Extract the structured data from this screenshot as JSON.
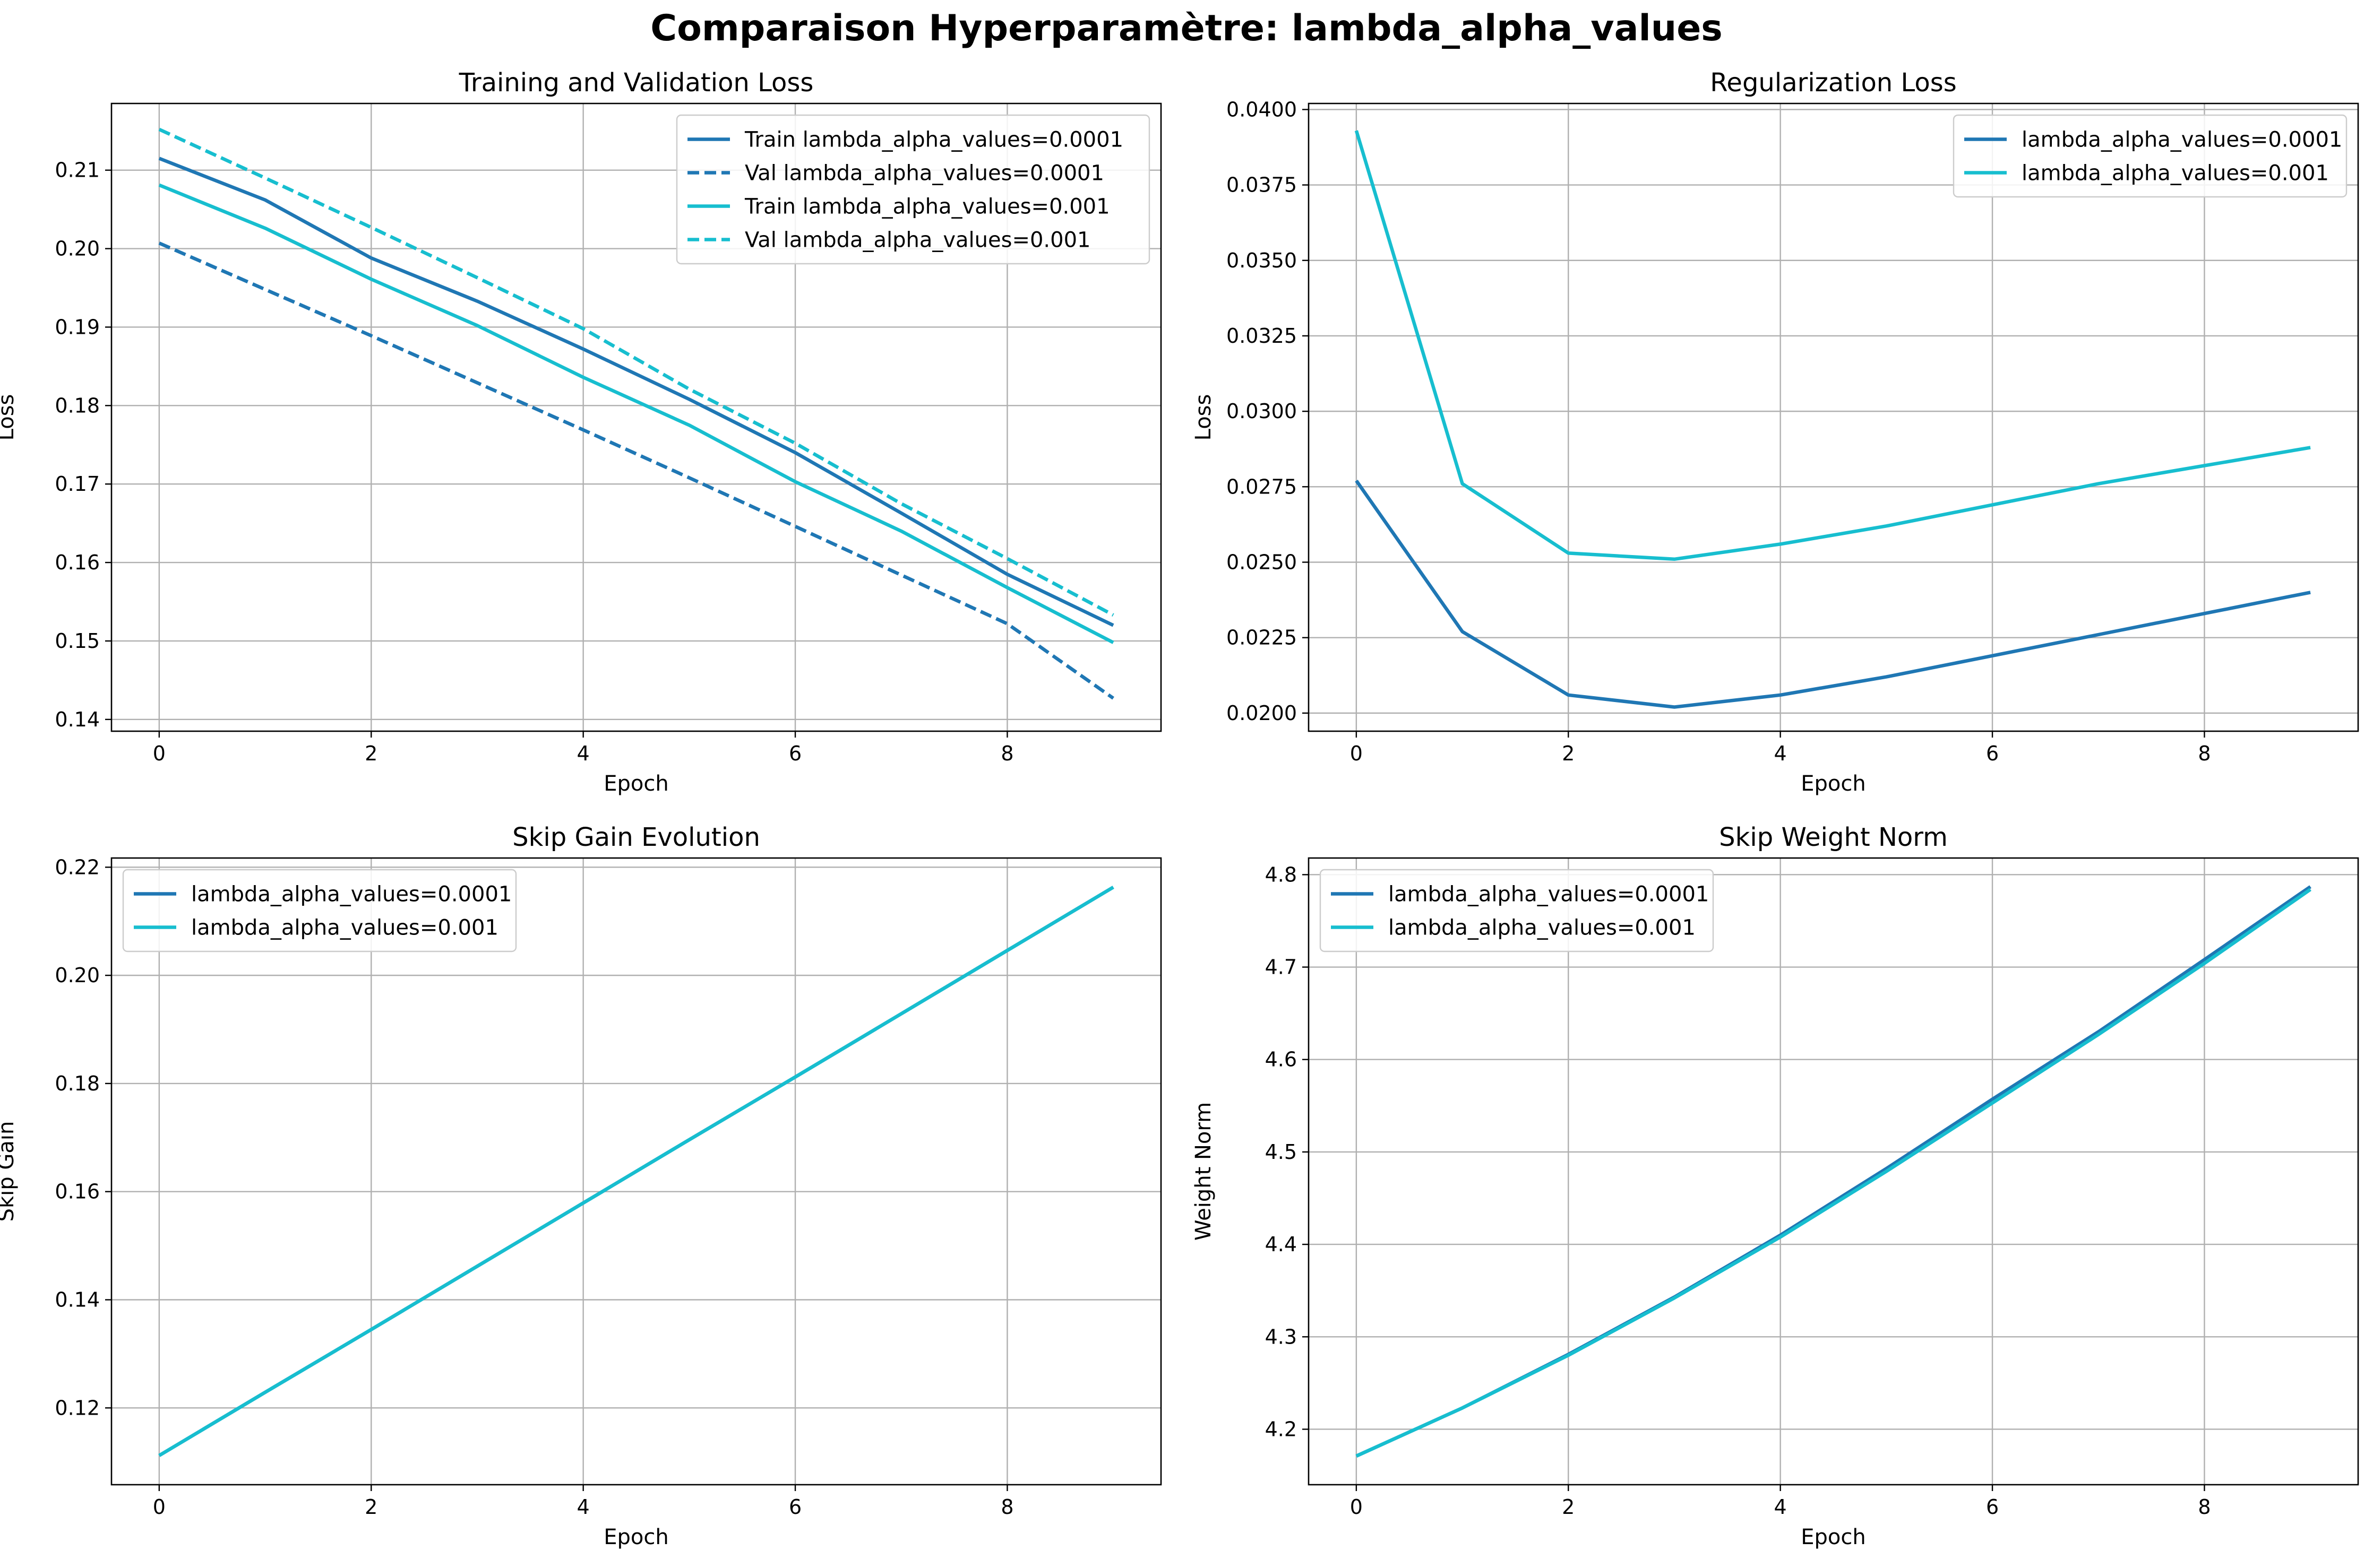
{
  "figure_title": "Comparaison Hyperparamètre: lambda_alpha_values",
  "colors": {
    "series_a": "#1f77b4",
    "series_b": "#17becf",
    "grid": "#b0b0b0",
    "frame": "#000000"
  },
  "chart_data": [
    {
      "type": "line",
      "title": "Training and Validation Loss",
      "xlabel": "Epoch",
      "ylabel": "Loss",
      "xlim": [
        -0.45,
        9.45
      ],
      "ylim": [
        0.1385,
        0.2185
      ],
      "xticks": [
        0,
        2,
        4,
        6,
        8
      ],
      "yticks": [
        0.14,
        0.15,
        0.16,
        0.17,
        0.18,
        0.19,
        0.2,
        0.21
      ],
      "ytick_labels": [
        "0.14",
        "0.15",
        "0.16",
        "0.17",
        "0.18",
        "0.19",
        "0.20",
        "0.21"
      ],
      "grid": true,
      "legend_position": "upper right",
      "x": [
        0,
        1,
        2,
        3,
        4,
        5,
        6,
        7,
        8,
        9
      ],
      "series": [
        {
          "name": "Train lambda_alpha_values=0.0001",
          "color": "#1f77b4",
          "dash": "solid",
          "values": [
            0.2115,
            0.2062,
            0.1988,
            0.1933,
            0.1872,
            0.1808,
            0.174,
            0.1663,
            0.1585,
            0.152
          ]
        },
        {
          "name": "Val lambda_alpha_values=0.0001",
          "color": "#1f77b4",
          "dash": "dashed",
          "values": [
            0.2007,
            0.1948,
            0.1889,
            0.1829,
            0.1769,
            0.1708,
            0.1646,
            0.1584,
            0.1522,
            0.1427
          ]
        },
        {
          "name": "Train lambda_alpha_values=0.001",
          "color": "#17becf",
          "dash": "solid",
          "values": [
            0.2081,
            0.2026,
            0.1961,
            0.1902,
            0.1836,
            0.1775,
            0.1703,
            0.164,
            0.1568,
            0.1498
          ]
        },
        {
          "name": "Val lambda_alpha_values=0.001",
          "color": "#17becf",
          "dash": "dashed",
          "values": [
            0.2152,
            0.209,
            0.2027,
            0.1963,
            0.1898,
            0.1821,
            0.1752,
            0.1675,
            0.1605,
            0.1533
          ]
        }
      ]
    },
    {
      "type": "line",
      "title": "Regularization Loss",
      "xlabel": "Epoch",
      "ylabel": "Loss",
      "xlim": [
        -0.45,
        9.45
      ],
      "ylim": [
        0.0194,
        0.0402
      ],
      "xticks": [
        0,
        2,
        4,
        6,
        8
      ],
      "yticks": [
        0.02,
        0.0225,
        0.025,
        0.0275,
        0.03,
        0.0325,
        0.035,
        0.0375,
        0.04
      ],
      "ytick_labels": [
        "0.0200",
        "0.0225",
        "0.0250",
        "0.0275",
        "0.0300",
        "0.0325",
        "0.0350",
        "0.0375",
        "0.0400"
      ],
      "grid": true,
      "legend_position": "upper right",
      "x": [
        0,
        1,
        2,
        3,
        4,
        5,
        6,
        7,
        8,
        9
      ],
      "series": [
        {
          "name": "lambda_alpha_values=0.0001",
          "color": "#1f77b4",
          "dash": "solid",
          "values": [
            0.0277,
            0.0227,
            0.0206,
            0.0202,
            0.0206,
            0.0212,
            0.0219,
            0.0226,
            0.0233,
            0.024
          ]
        },
        {
          "name": "lambda_alpha_values=0.001",
          "color": "#17becf",
          "dash": "solid",
          "values": [
            0.0393,
            0.0276,
            0.0253,
            0.0251,
            0.0256,
            0.0262,
            0.0269,
            0.0276,
            0.0282,
            0.0288
          ]
        }
      ]
    },
    {
      "type": "line",
      "title": "Skip Gain Evolution",
      "xlabel": "Epoch",
      "ylabel": "Skip Gain",
      "xlim": [
        -0.45,
        9.45
      ],
      "ylim": [
        0.1058,
        0.2217
      ],
      "xticks": [
        0,
        2,
        4,
        6,
        8
      ],
      "yticks": [
        0.12,
        0.14,
        0.16,
        0.18,
        0.2,
        0.22
      ],
      "ytick_labels": [
        "0.12",
        "0.14",
        "0.16",
        "0.18",
        "0.20",
        "0.22"
      ],
      "grid": true,
      "legend_position": "upper left",
      "x": [
        0,
        1,
        2,
        3,
        4,
        5,
        6,
        7,
        8,
        9
      ],
      "series": [
        {
          "name": "lambda_alpha_values=0.0001",
          "color": "#1f77b4",
          "dash": "solid",
          "values": [
            0.1112,
            0.1229,
            0.1345,
            0.1462,
            0.1579,
            0.1696,
            0.1812,
            0.1929,
            0.2046,
            0.2163
          ]
        },
        {
          "name": "lambda_alpha_values=0.001",
          "color": "#17becf",
          "dash": "solid",
          "values": [
            0.1112,
            0.1229,
            0.1345,
            0.1462,
            0.1579,
            0.1696,
            0.1812,
            0.1929,
            0.2046,
            0.2163
          ]
        }
      ]
    },
    {
      "type": "line",
      "title": "Skip Weight Norm",
      "xlabel": "Epoch",
      "ylabel": "Weight Norm",
      "xlim": [
        -0.45,
        9.45
      ],
      "ylim": [
        4.14,
        4.818
      ],
      "xticks": [
        0,
        2,
        4,
        6,
        8
      ],
      "yticks": [
        4.2,
        4.3,
        4.4,
        4.5,
        4.6,
        4.7,
        4.8
      ],
      "ytick_labels": [
        "4.2",
        "4.3",
        "4.4",
        "4.5",
        "4.6",
        "4.7",
        "4.8"
      ],
      "grid": true,
      "legend_position": "upper left",
      "x": [
        0,
        1,
        2,
        3,
        4,
        5,
        6,
        7,
        8,
        9
      ],
      "series": [
        {
          "name": "lambda_alpha_values=0.0001",
          "color": "#1f77b4",
          "dash": "solid",
          "values": [
            4.171,
            4.223,
            4.281,
            4.343,
            4.41,
            4.482,
            4.557,
            4.63,
            4.708,
            4.787
          ]
        },
        {
          "name": "lambda_alpha_values=0.001",
          "color": "#17becf",
          "dash": "solid",
          "values": [
            4.171,
            4.223,
            4.28,
            4.342,
            4.408,
            4.479,
            4.553,
            4.627,
            4.704,
            4.784
          ]
        }
      ]
    }
  ]
}
